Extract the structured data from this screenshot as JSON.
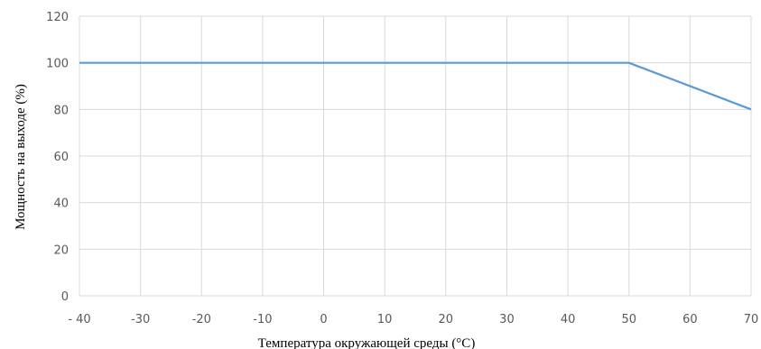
{
  "chart_data": {
    "type": "line",
    "title": "",
    "xlabel": "Температура окружающей среды (°C)",
    "ylabel": "Мощность на выходе (%)",
    "x_ticks": [
      "- 40",
      "-30",
      "-20",
      "-10",
      "0",
      "10",
      "20",
      "30",
      "40",
      "50",
      "60",
      "70"
    ],
    "x_tick_values": [
      -40,
      -30,
      -20,
      -10,
      0,
      10,
      20,
      30,
      40,
      50,
      60,
      70
    ],
    "y_ticks": [
      "0",
      "20",
      "40",
      "60",
      "80",
      "100",
      "120"
    ],
    "y_tick_values": [
      0,
      20,
      40,
      60,
      80,
      100,
      120
    ],
    "xlim": [
      -40,
      70
    ],
    "ylim": [
      0,
      120
    ],
    "grid": true,
    "legend": "none",
    "series": [
      {
        "x": [
          -40,
          50,
          70
        ],
        "y": [
          100,
          100,
          80
        ],
        "color": "#5b9bd5"
      }
    ],
    "colors": {
      "grid": "#d9d9d9",
      "tick_text": "#595959",
      "axis_title": "#000000"
    }
  }
}
